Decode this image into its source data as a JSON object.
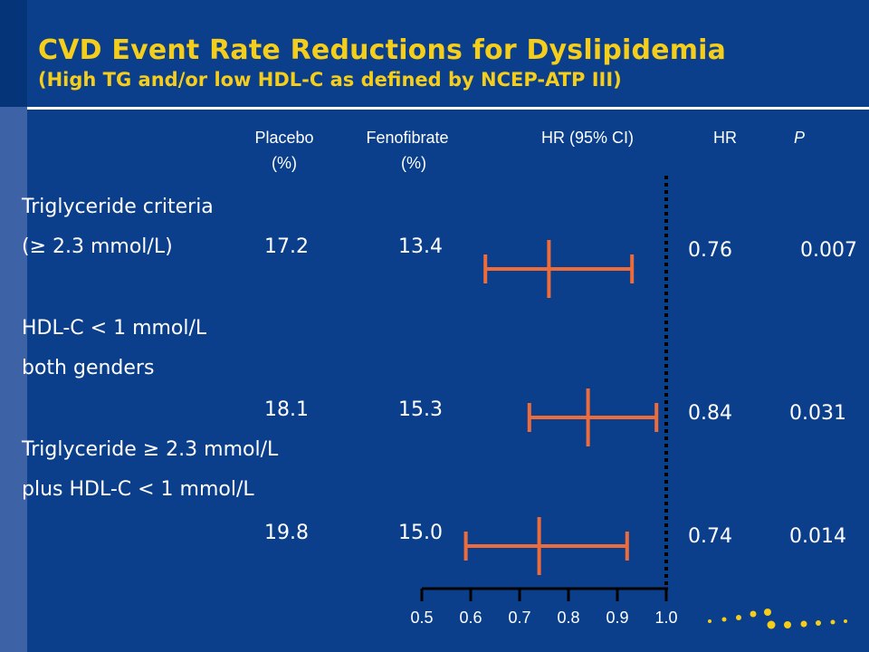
{
  "header": {
    "title": "CVD Event Rate Reductions  for Dyslipidemia",
    "subtitle": "(High TG and/or low HDL-C as defined by NCEP-ATP III)"
  },
  "columns": {
    "placebo": [
      "Placebo",
      "(%)"
    ],
    "fenofibrate": [
      "Fenofibrate",
      "(%)"
    ],
    "hr_ci": "HR (95% CI)",
    "hr": "HR",
    "p": "P"
  },
  "rows": [
    {
      "labels": [
        "Triglyceride criteria",
        "(≥ 2.3 mmol/L)"
      ],
      "placebo": "17.2",
      "fenofibrate": "13.4",
      "hr": "0.76",
      "p": "0.007"
    },
    {
      "labels": [
        "HDL-C < 1 mmol/L",
        "both genders"
      ],
      "placebo": "18.1",
      "fenofibrate": "15.3",
      "hr": "0.84",
      "p": "0.031"
    },
    {
      "labels": [
        "Triglyceride ≥ 2.3 mmol/L",
        "plus HDL-C < 1 mmol/L"
      ],
      "placebo": "19.8",
      "fenofibrate": "15.0",
      "hr": "0.74",
      "p": "0.014"
    }
  ],
  "chart_data": {
    "type": "forest",
    "x_ticks": [
      "0.5",
      "0.6",
      "0.7",
      "0.8",
      "0.9",
      "1.0"
    ],
    "xlim": [
      0.5,
      1.0
    ],
    "reference_line": 1.0,
    "series": [
      {
        "hr": 0.76,
        "ci_low": 0.63,
        "ci_high": 0.93
      },
      {
        "hr": 0.84,
        "ci_low": 0.72,
        "ci_high": 0.98
      },
      {
        "hr": 0.74,
        "ci_low": 0.59,
        "ci_high": 0.92
      }
    ],
    "colors": {
      "marker": "#ee6c3a",
      "axis": "#000000",
      "reference": "#000000"
    }
  }
}
